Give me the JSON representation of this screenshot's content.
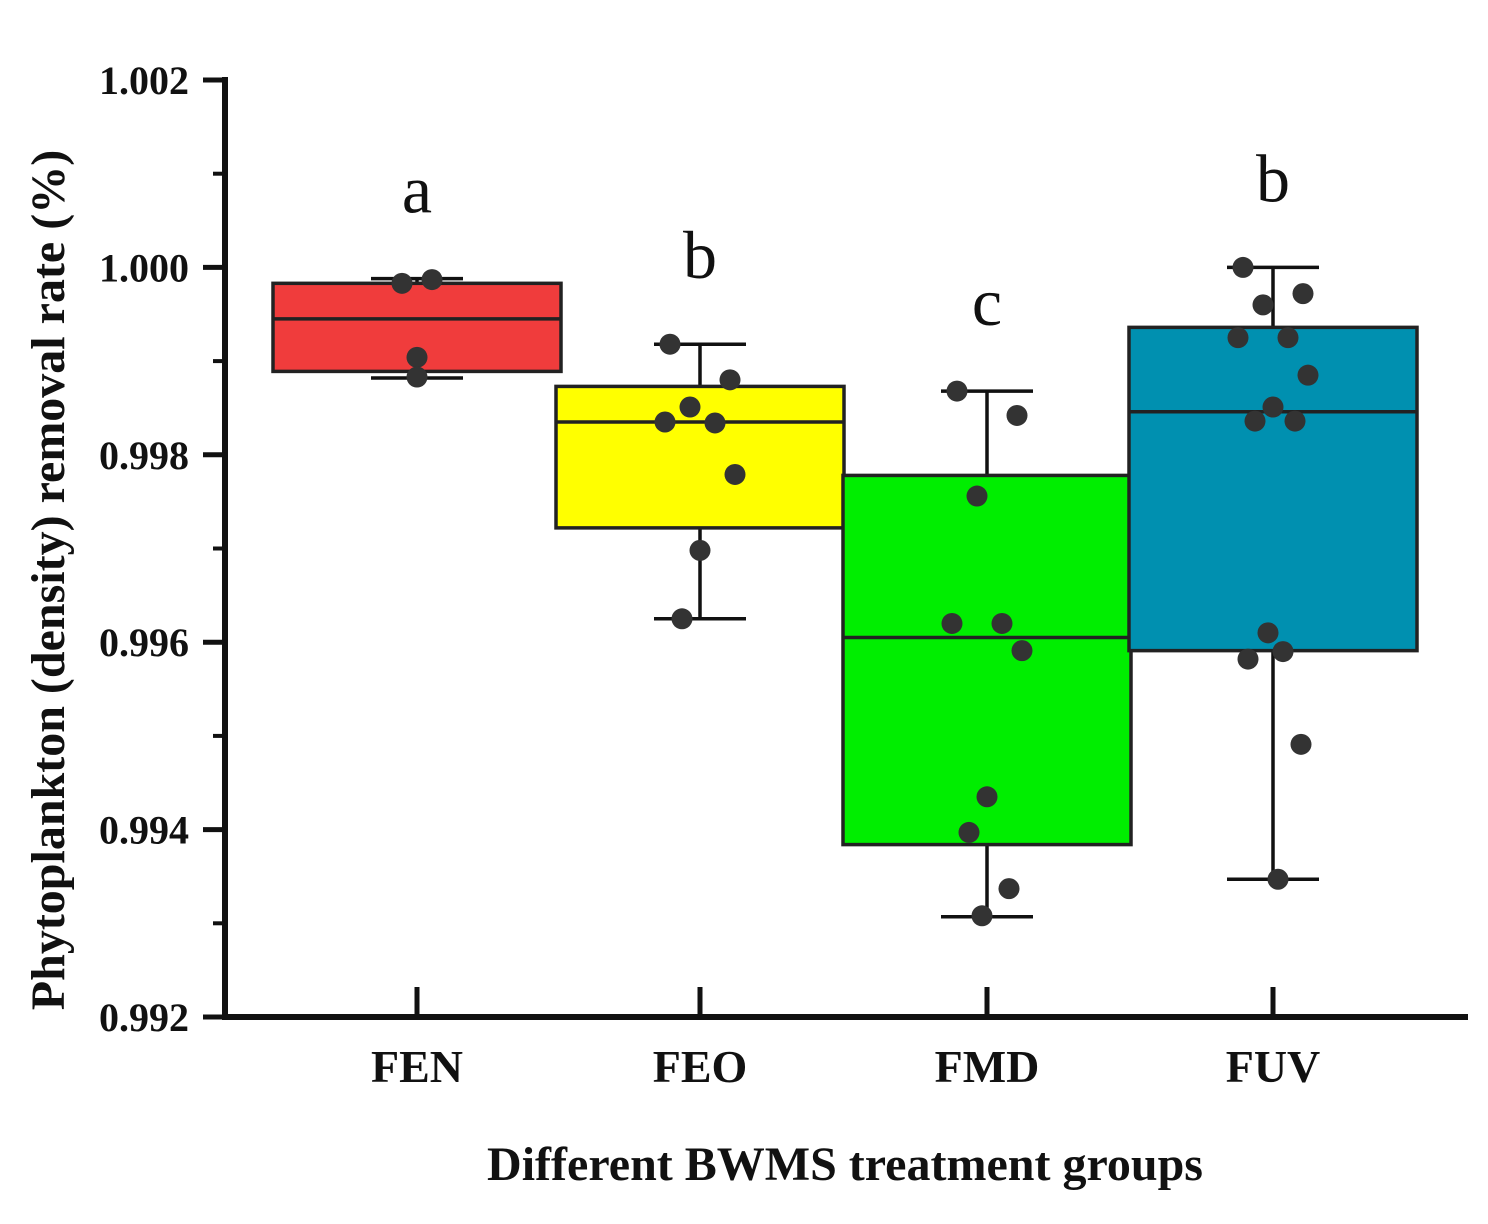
{
  "chart_data": {
    "type": "box",
    "title": "",
    "xlabel": "Different BWMS treatment groups",
    "ylabel": "Phytoplankton (density) removal rate (%)",
    "ylim": [
      0.992,
      1.002
    ],
    "yticks": [
      "0.992",
      "0.994",
      "0.996",
      "0.998",
      "1.000",
      "1.002"
    ],
    "yticks_values": [
      0.992,
      0.994,
      0.996,
      0.998,
      1.0,
      1.002
    ],
    "grid": false,
    "groups": [
      {
        "name": "FEN",
        "color": "#f03c3c",
        "letter": "a",
        "whisker_low": 0.99882,
        "q1": 0.99889,
        "median": 0.99945,
        "q3": 0.99983,
        "whisker_high": 0.99988,
        "points": [
          0.99983,
          0.99987,
          0.99904,
          0.99883
        ]
      },
      {
        "name": "FEO",
        "color": "#ffff00",
        "letter": "b",
        "whisker_low": 0.99625,
        "q1": 0.99722,
        "median": 0.99835,
        "q3": 0.99873,
        "whisker_high": 0.99918,
        "points": [
          0.99918,
          0.9988,
          0.99851,
          0.99834,
          0.99835,
          0.99779,
          0.99698,
          0.99625
        ]
      },
      {
        "name": "FMD",
        "color": "#00ee00",
        "letter": "c",
        "whisker_low": 0.99307,
        "q1": 0.99384,
        "median": 0.99605,
        "q3": 0.99778,
        "whisker_high": 0.99868,
        "points": [
          0.99868,
          0.99842,
          0.99756,
          0.9962,
          0.9962,
          0.99591,
          0.99435,
          0.99397,
          0.99337,
          0.99308
        ]
      },
      {
        "name": "FUV",
        "color": "#0090b0",
        "letter": "b",
        "whisker_low": 0.99347,
        "q1": 0.99591,
        "median": 0.99846,
        "q3": 0.99936,
        "whisker_high": 1.0,
        "points": [
          1.0,
          0.99972,
          0.9996,
          0.99925,
          0.99925,
          0.99885,
          0.99851,
          0.99836,
          0.99836,
          0.9961,
          0.9959,
          0.99582,
          0.99491,
          0.99347
        ]
      }
    ]
  }
}
